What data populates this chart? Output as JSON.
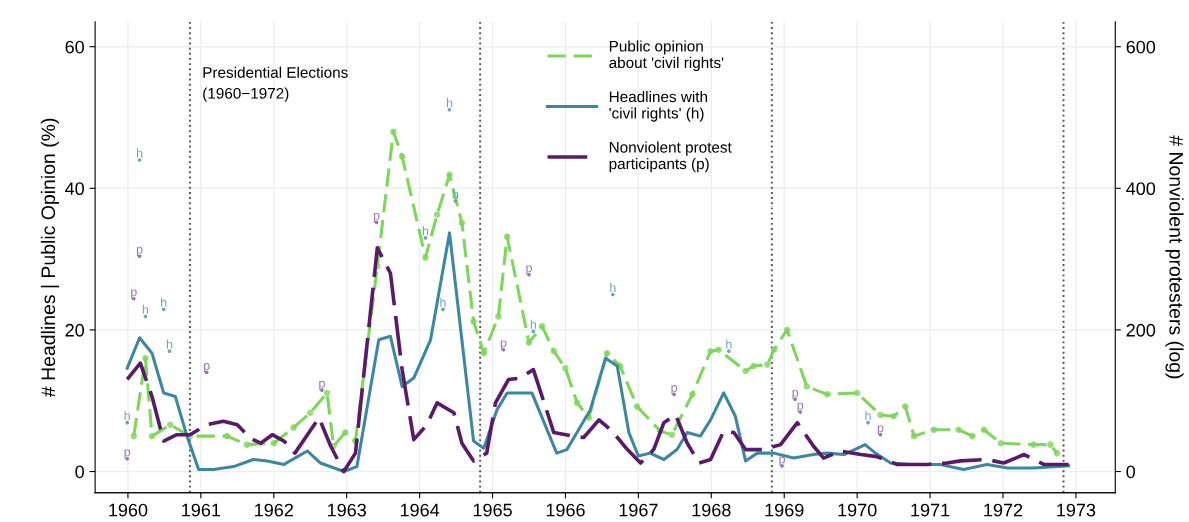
{
  "chart_data": {
    "type": "line",
    "xlabel": null,
    "ylabel": "# Headlines | Public Opinion (%)",
    "y2label": "# Nonviolent protesters (log)",
    "xlim": [
      1959.55,
      1973.54
    ],
    "xticks": [
      1960,
      1961,
      1962,
      1963,
      1964,
      1965,
      1966,
      1967,
      1968,
      1969,
      1970,
      1971,
      1972,
      1973
    ],
    "ylim": [
      -3,
      63.5
    ],
    "yticks": [
      0,
      20,
      40,
      60
    ],
    "y2lim": [
      -30,
      635
    ],
    "y2ticks": [
      0,
      200,
      400,
      600
    ],
    "grid": true,
    "legend": "top",
    "series": [
      {
        "name": "Public opinion\nabout 'civil rights'",
        "color": "#7ed65a",
        "line_style": "dashed",
        "marker": "circle",
        "x": [
          1960.08,
          1960.24,
          1960.33,
          1960.58,
          1960.85,
          1961.36,
          1961.63,
          1962.0,
          1962.27,
          1962.5,
          1962.73,
          1962.82,
          1962.98,
          1963.12,
          1963.42,
          1963.64,
          1963.76,
          1964.08,
          1964.24,
          1964.41,
          1964.58,
          1964.74,
          1964.88,
          1965.08,
          1965.2,
          1965.5,
          1965.68,
          1965.84,
          1966.0,
          1966.16,
          1966.32,
          1966.57,
          1966.75,
          1966.98,
          1967.3,
          1967.46,
          1967.74,
          1967.99,
          1968.1,
          1968.47,
          1968.58,
          1968.77,
          1968.86,
          1969.04,
          1969.31,
          1969.59,
          1970.0,
          1970.32,
          1970.5,
          1970.66,
          1970.78,
          1971.05,
          1971.39,
          1971.58,
          1971.74,
          1971.97,
          1972.42,
          1972.65,
          1972.74
        ],
        "values": [
          5.0,
          16.0,
          5.0,
          6.6,
          5.0,
          5.0,
          3.8,
          4.0,
          6.2,
          8.3,
          11.1,
          3.6,
          5.5,
          4.3,
          29.0,
          48.0,
          44.5,
          30.2,
          36.3,
          41.9,
          35.1,
          21.2,
          16.7,
          21.9,
          33.2,
          18.2,
          20.5,
          17.0,
          14.6,
          9.7,
          7.6,
          16.7,
          14.9,
          9.2,
          5.7,
          5.2,
          10.9,
          17.0,
          17.2,
          14.2,
          14.9,
          15.1,
          17.2,
          20.0,
          12.0,
          10.9,
          11.1,
          8.0,
          7.8,
          9.2,
          5.0,
          5.9,
          5.9,
          5.0,
          5.9,
          4.0,
          3.8,
          3.8,
          2.6
        ]
      },
      {
        "name": "Headlines with\n'civil rights' (h)",
        "color": "#3d87a0",
        "line_style": "solid",
        "marker": "none",
        "x": [
          1959.99,
          1960.16,
          1960.33,
          1960.49,
          1960.65,
          1960.81,
          1960.97,
          1961.17,
          1961.45,
          1961.72,
          1961.91,
          1962.14,
          1962.46,
          1962.64,
          1962.96,
          1963.14,
          1963.44,
          1963.6,
          1963.76,
          1963.92,
          1964.15,
          1964.41,
          1964.74,
          1964.88,
          1965.06,
          1965.2,
          1965.54,
          1965.88,
          1966.02,
          1966.34,
          1966.55,
          1966.71,
          1966.87,
          1967.0,
          1967.16,
          1967.35,
          1967.53,
          1967.67,
          1967.85,
          1967.99,
          1968.17,
          1968.33,
          1968.47,
          1968.63,
          1968.86,
          1969.13,
          1969.4,
          1969.59,
          1969.82,
          1970.11,
          1970.25,
          1970.46,
          1970.73,
          1971.14,
          1971.46,
          1971.78,
          1972.06,
          1972.42,
          1972.9
        ],
        "values": [
          14.6,
          18.9,
          16.7,
          11.1,
          10.6,
          5.0,
          0.3,
          0.3,
          0.7,
          1.7,
          1.5,
          1.0,
          2.9,
          1.2,
          0.0,
          0.7,
          18.6,
          19.1,
          12.0,
          13.2,
          18.6,
          33.7,
          4.3,
          3.3,
          8.7,
          11.1,
          11.1,
          2.6,
          3.1,
          8.7,
          16.0,
          14.9,
          5.5,
          2.2,
          2.6,
          1.7,
          3.1,
          5.5,
          5.0,
          7.3,
          11.1,
          7.8,
          1.5,
          2.6,
          2.6,
          1.9,
          2.4,
          2.6,
          2.4,
          3.8,
          2.6,
          1.2,
          1.0,
          1.0,
          0.3,
          1.0,
          0.5,
          0.5,
          0.8
        ]
      },
      {
        "name": "Nonviolent protest\nparticipants (p)",
        "color": "#5a1a6a",
        "line_style": "dashed",
        "marker": "none",
        "axis": "y2",
        "x": [
          1959.99,
          1960.17,
          1960.33,
          1960.49,
          1960.67,
          1960.85,
          1961.08,
          1961.31,
          1961.5,
          1961.68,
          1961.82,
          1961.98,
          1962.14,
          1962.29,
          1962.62,
          1962.78,
          1962.96,
          1963.12,
          1963.42,
          1963.6,
          1963.76,
          1963.92,
          1964.1,
          1964.24,
          1964.47,
          1964.58,
          1964.74,
          1964.92,
          1965.04,
          1965.22,
          1965.38,
          1965.56,
          1965.84,
          1966.11,
          1966.25,
          1966.46,
          1966.64,
          1966.85,
          1967.03,
          1967.21,
          1967.35,
          1967.51,
          1967.67,
          1967.83,
          1967.99,
          1968.17,
          1968.31,
          1968.47,
          1968.72,
          1968.95,
          1969.18,
          1969.4,
          1969.54,
          1969.77,
          1970.05,
          1970.27,
          1970.55,
          1970.96,
          1971.23,
          1971.42,
          1971.78,
          1972.01,
          1972.29,
          1972.56,
          1972.9
        ],
        "values": [
          130,
          153,
          106,
          43,
          52,
          52,
          66,
          71,
          66,
          47,
          40,
          52,
          43,
          26,
          76,
          36,
          0,
          26,
          316,
          280,
          144,
          45,
          66,
          97,
          83,
          40,
          15,
          26,
          97,
          130,
          132,
          144,
          55,
          50,
          48,
          73,
          57,
          31,
          12,
          31,
          69,
          80,
          40,
          12,
          17,
          57,
          55,
          31,
          31,
          38,
          69,
          36,
          19,
          29,
          24,
          21,
          10,
          10,
          12,
          15,
          17,
          12,
          24,
          10,
          10
        ]
      },
      {
        "type": "scatter",
        "color": "#6aa6bb",
        "marker": "circle",
        "x": [
          1960.16,
          1960.24,
          1960.49,
          1960.57,
          1959.99,
          1964.41,
          1964.08,
          1964.49,
          1964.32,
          1966.65,
          1968.24,
          1965.56,
          1970.15
        ],
        "values": [
          44.0,
          21.9,
          22.9,
          17.0,
          6.9,
          51.1,
          33.0,
          38.2,
          22.9,
          25.0,
          17.0,
          19.8,
          6.9
        ],
        "value_labels": [
          "h",
          "h",
          "h",
          "h",
          "h",
          "h",
          "h",
          "h",
          "h",
          "h",
          "h",
          "h",
          "h"
        ]
      },
      {
        "type": "scatter",
        "color": "#9a76ad",
        "marker": "circle",
        "x": [
          1960.16,
          1960.08,
          1961.08,
          1959.99,
          1963.41,
          1962.66,
          1965.5,
          1965.15,
          1967.49,
          1969.15,
          1969.22,
          1970.32,
          1968.97
        ],
        "values": [
          30.4,
          24.4,
          14.0,
          1.8,
          35.2,
          11.5,
          27.8,
          17.2,
          10.9,
          10.2,
          8.4,
          5.2,
          0.8
        ],
        "value_labels": [
          "p",
          "p",
          "p",
          "p",
          "p",
          "p",
          "p",
          "p",
          "p",
          "p",
          "p",
          "p",
          "p"
        ]
      }
    ],
    "ref_lines": [
      {
        "axis": "x",
        "value": 1960.85,
        "line_style": "dotted",
        "color": "#555555"
      },
      {
        "axis": "x",
        "value": 1964.83,
        "line_style": "dotted",
        "color": "#555555"
      },
      {
        "axis": "x",
        "value": 1968.83,
        "line_style": "dotted",
        "color": "#555555"
      },
      {
        "axis": "x",
        "value": 1972.83,
        "line_style": "dotted",
        "color": "#555555"
      }
    ],
    "annotations": [
      "Presidential Elections\n(1960−1972)"
    ]
  }
}
